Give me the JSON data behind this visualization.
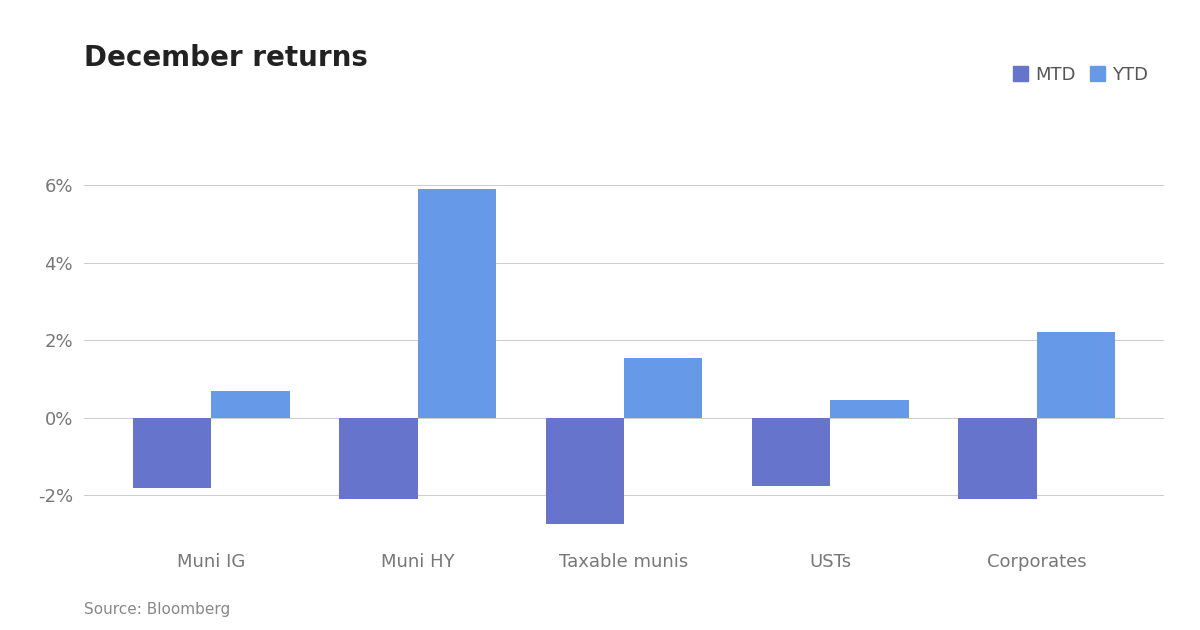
{
  "title": "December returns",
  "categories": [
    "Muni IG",
    "Muni HY",
    "Taxable munis",
    "USTs",
    "Corporates"
  ],
  "mtd_values": [
    -1.8,
    -2.1,
    -2.75,
    -1.75,
    -2.1
  ],
  "ytd_values": [
    0.7,
    5.9,
    1.55,
    0.45,
    2.2
  ],
  "mtd_color": "#6674CC",
  "ytd_color": "#6699E8",
  "ylim": [
    -3.2,
    7.2
  ],
  "yticks": [
    -2,
    0,
    2,
    4,
    6
  ],
  "ytick_labels": [
    "-2%",
    "0%",
    "2%",
    "4%",
    "6%"
  ],
  "source_text": "Source: Bloomberg",
  "legend_labels": [
    "MTD",
    "YTD"
  ],
  "background_color": "#ffffff",
  "grid_color": "#cccccc",
  "title_fontsize": 20,
  "tick_fontsize": 13,
  "source_fontsize": 11,
  "bar_width": 0.38,
  "legend_fontsize": 13
}
